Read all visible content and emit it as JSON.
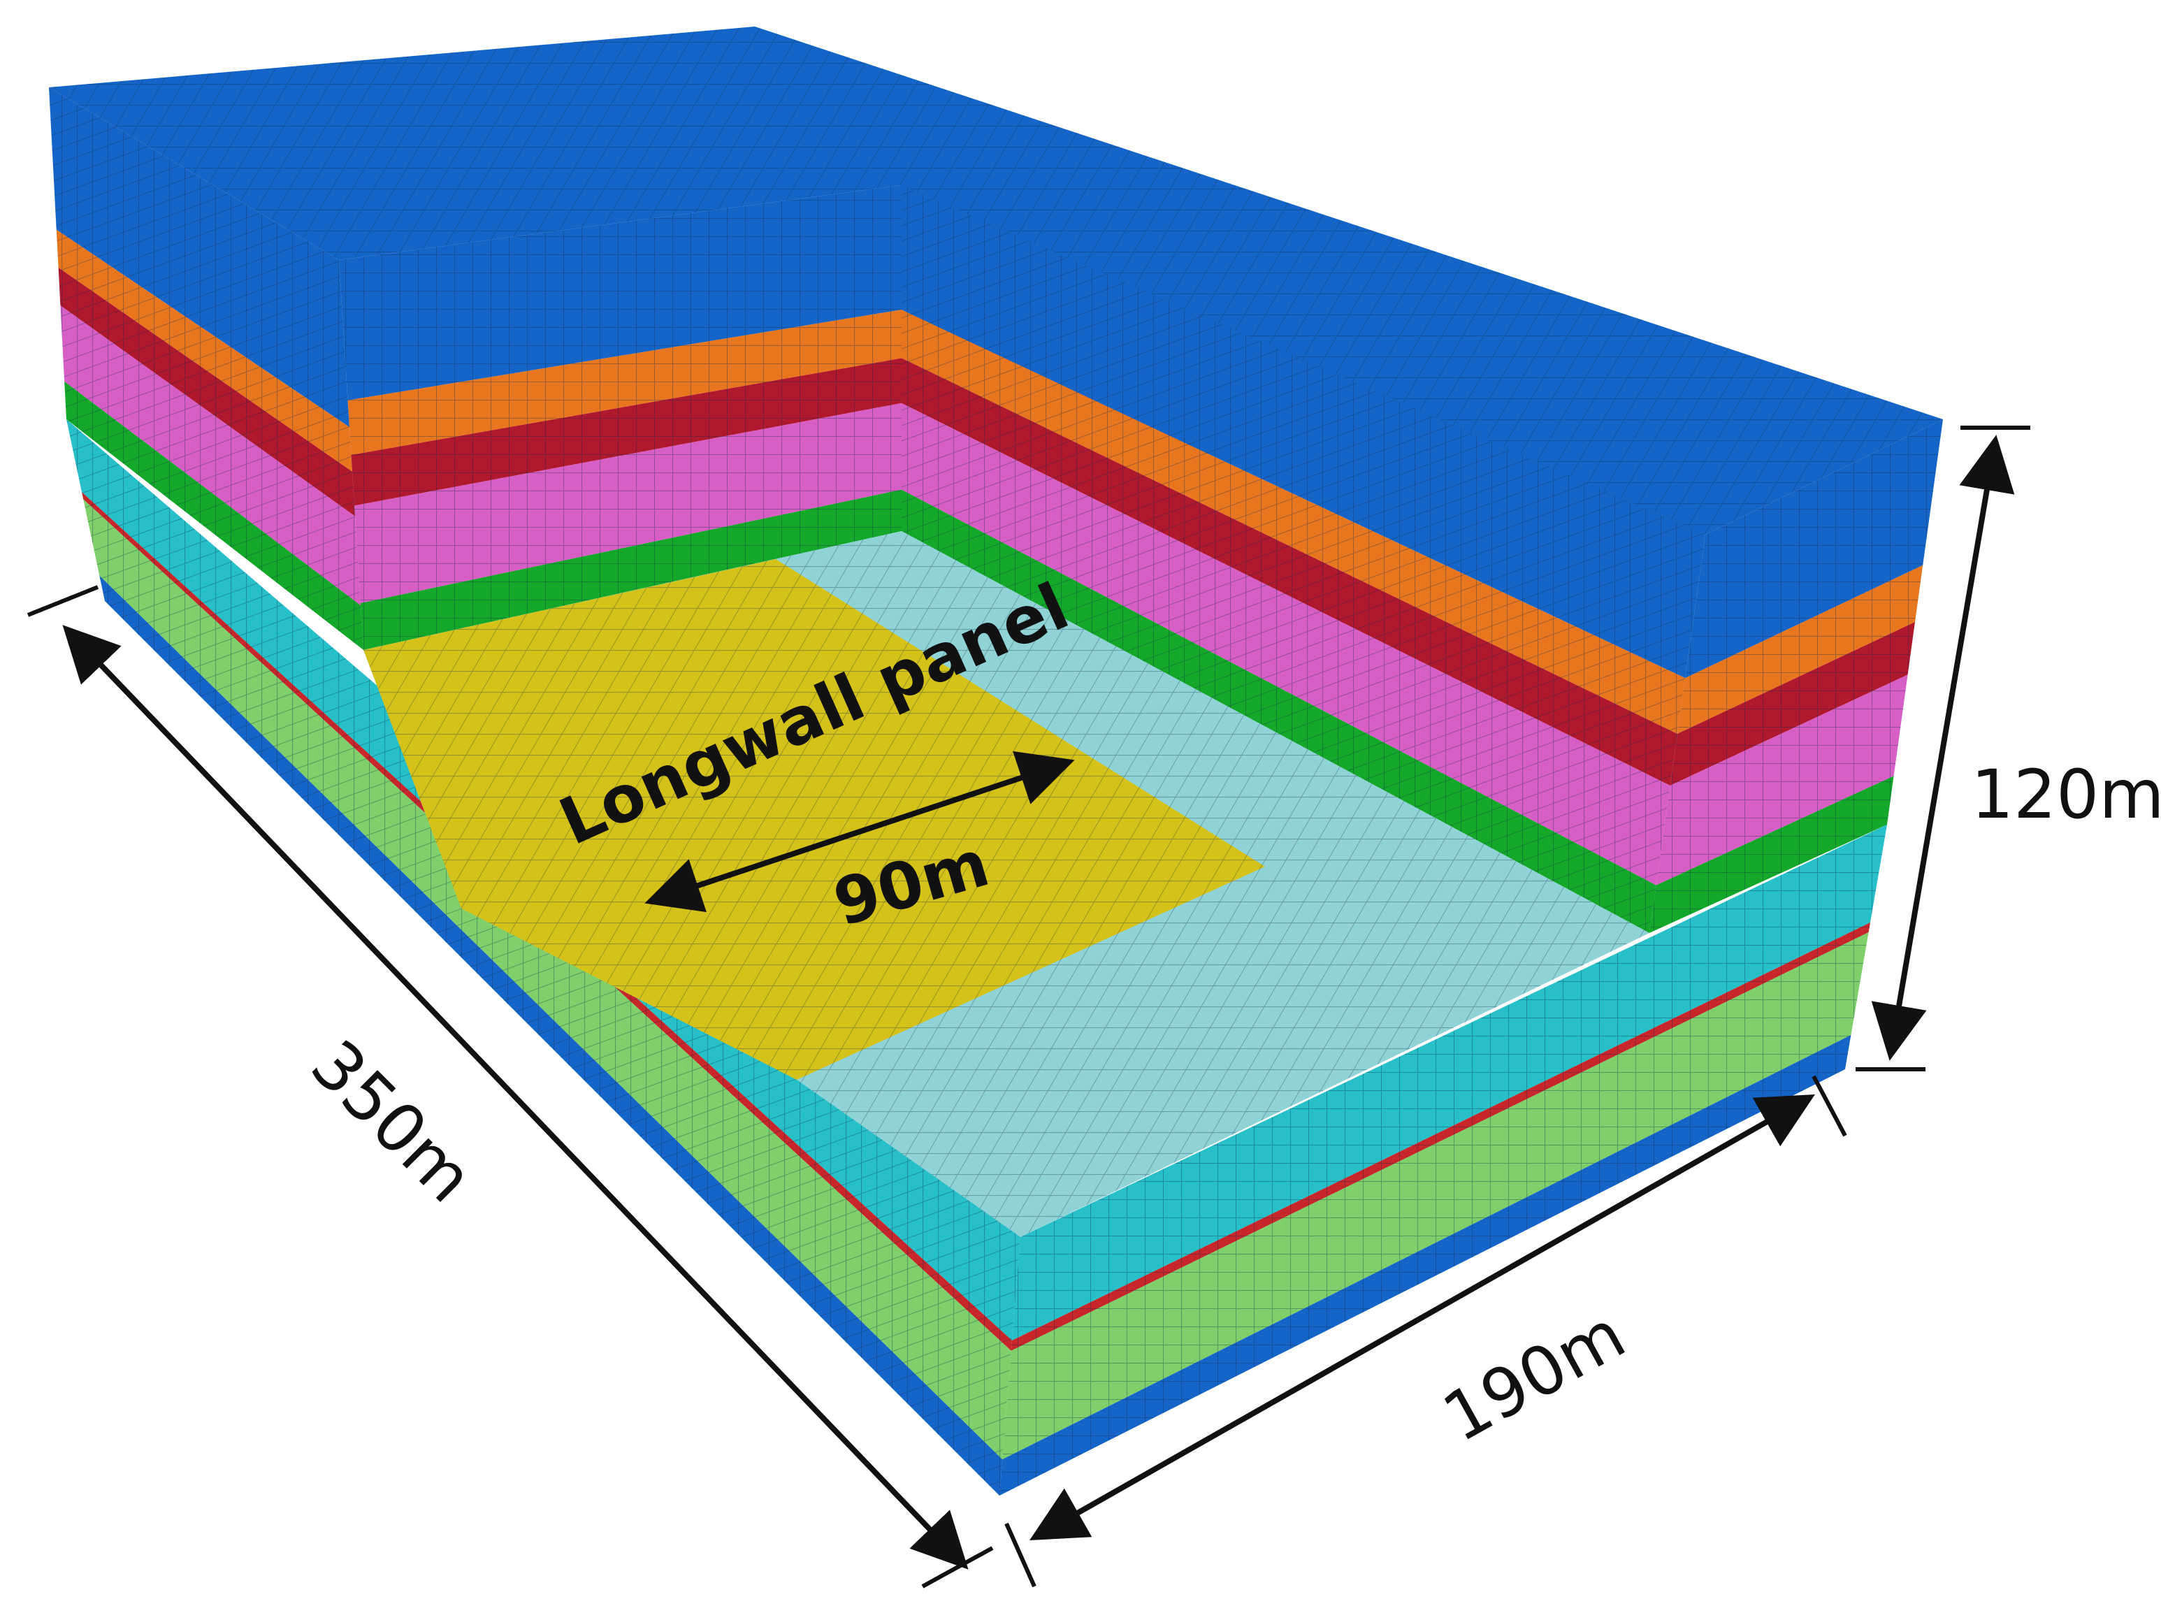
{
  "figure": {
    "panel_label": "Longwall panel",
    "panel_width_label": "90m",
    "length_label": "350m",
    "width_label": "190m",
    "height_label": "120m"
  },
  "layers": [
    {
      "name": "layer-1",
      "color": "#1565c8"
    },
    {
      "name": "layer-2",
      "color": "#e8761e"
    },
    {
      "name": "layer-3",
      "color": "#b0182e"
    },
    {
      "name": "layer-4",
      "color": "#d65ec4"
    },
    {
      "name": "layer-5",
      "color": "#14a82a"
    },
    {
      "name": "coal-seam",
      "color": "#c0392b"
    },
    {
      "name": "layer-6",
      "color": "#27bfc8"
    },
    {
      "name": "layer-7",
      "color": "#c7272a"
    },
    {
      "name": "layer-8",
      "color": "#7fcf6a"
    },
    {
      "name": "layer-9",
      "color": "#1565c8"
    }
  ],
  "colors": {
    "panel": "#d4c21a",
    "excavated_floor": "#8fd3d6",
    "mesh_line": "#0b2a4a"
  }
}
